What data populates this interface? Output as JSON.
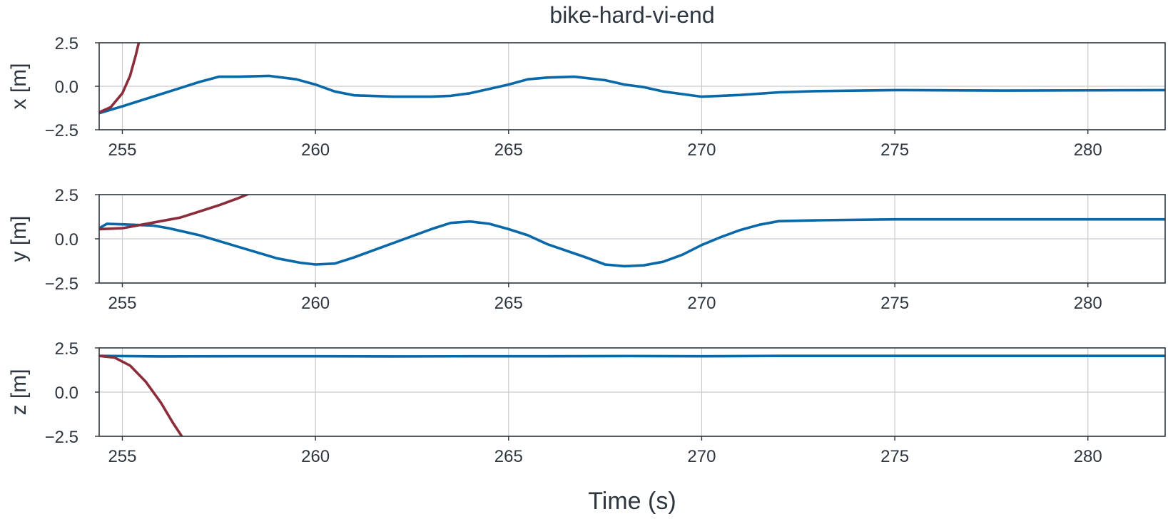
{
  "figure": {
    "title": "bike-hard-vi-end",
    "xlabel": "Time (s)"
  },
  "colors": {
    "blue_series": "#0868a8",
    "red_series": "#8b2d3b",
    "axis": "#2e3640",
    "grid": "#c8cbcf"
  },
  "chart_data": [
    {
      "type": "line",
      "title": "",
      "xlabel": "",
      "ylabel": "x [m]",
      "xlim": [
        254.4,
        282
      ],
      "ylim": [
        -2.5,
        2.5
      ],
      "x_ticks": [
        255,
        260,
        265,
        270,
        275,
        280
      ],
      "x_tick_labels": [
        "255",
        "260",
        "265",
        "270",
        "275",
        "280"
      ],
      "y_ticks": [
        2.5,
        0.0,
        -2.5
      ],
      "y_tick_labels": [
        "2.5",
        "0.0",
        "−2.5"
      ],
      "grid": true,
      "legend": "none",
      "series": [
        {
          "color": "#0868a8",
          "x": [
            254.4,
            255,
            256,
            257,
            257.5,
            258,
            258.8,
            259.5,
            260,
            260.5,
            261,
            262,
            263,
            263.5,
            264,
            264.5,
            265,
            265.5,
            266,
            266.7,
            267.5,
            268,
            268.5,
            269,
            269.5,
            270,
            270.5,
            271,
            272,
            273,
            275,
            278,
            282
          ],
          "y": [
            -1.55,
            -1.15,
            -0.45,
            0.25,
            0.55,
            0.55,
            0.6,
            0.4,
            0.1,
            -0.3,
            -0.52,
            -0.6,
            -0.6,
            -0.55,
            -0.4,
            -0.15,
            0.1,
            0.4,
            0.5,
            0.55,
            0.35,
            0.1,
            -0.05,
            -0.3,
            -0.45,
            -0.6,
            -0.55,
            -0.5,
            -0.35,
            -0.28,
            -0.22,
            -0.25,
            -0.22
          ]
        },
        {
          "color": "#8b2d3b",
          "x": [
            254.4,
            254.7,
            255.0,
            255.2,
            255.35,
            255.5
          ],
          "y": [
            -1.5,
            -1.2,
            -0.4,
            0.6,
            1.8,
            3.2
          ]
        }
      ]
    },
    {
      "type": "line",
      "title": "",
      "xlabel": "",
      "ylabel": "y [m]",
      "xlim": [
        254.4,
        282
      ],
      "ylim": [
        -2.5,
        2.5
      ],
      "x_ticks": [
        255,
        260,
        265,
        270,
        275,
        280
      ],
      "x_tick_labels": [
        "255",
        "260",
        "265",
        "270",
        "275",
        "280"
      ],
      "y_ticks": [
        2.5,
        0.0,
        -2.5
      ],
      "y_tick_labels": [
        "2.5",
        "0.0",
        "−2.5"
      ],
      "grid": true,
      "legend": "none",
      "series": [
        {
          "color": "#0868a8",
          "x": [
            254.4,
            254.6,
            255,
            255.8,
            256.2,
            257,
            258,
            259,
            259.6,
            260,
            260.5,
            261,
            262,
            263,
            263.5,
            264,
            264.5,
            265,
            265.5,
            266,
            267,
            267.5,
            268,
            268.5,
            269,
            269.5,
            270,
            270.5,
            271,
            271.5,
            272,
            273,
            275,
            276,
            278,
            280,
            282
          ],
          "y": [
            0.6,
            0.85,
            0.82,
            0.75,
            0.6,
            0.2,
            -0.45,
            -1.1,
            -1.35,
            -1.45,
            -1.4,
            -1.05,
            -0.25,
            0.55,
            0.9,
            0.98,
            0.85,
            0.55,
            0.2,
            -0.3,
            -1.05,
            -1.45,
            -1.55,
            -1.5,
            -1.3,
            -0.9,
            -0.35,
            0.1,
            0.5,
            0.8,
            1.0,
            1.05,
            1.1,
            1.1,
            1.1,
            1.1,
            1.1
          ]
        },
        {
          "color": "#8b2d3b",
          "x": [
            254.4,
            255,
            255.5,
            256,
            256.5,
            257,
            257.5,
            258,
            258.5,
            259
          ],
          "y": [
            0.55,
            0.6,
            0.8,
            1.0,
            1.2,
            1.55,
            1.9,
            2.3,
            2.75,
            3.2
          ]
        }
      ]
    },
    {
      "type": "line",
      "title": "",
      "xlabel": "",
      "ylabel": "z [m]",
      "xlim": [
        254.4,
        282
      ],
      "ylim": [
        -2.5,
        2.5
      ],
      "x_ticks": [
        255,
        260,
        265,
        270,
        275,
        280
      ],
      "x_tick_labels": [
        "255",
        "260",
        "265",
        "270",
        "275",
        "280"
      ],
      "y_ticks": [
        2.5,
        0.0,
        -2.5
      ],
      "y_tick_labels": [
        "2.5",
        "0.0",
        "−2.5"
      ],
      "grid": true,
      "legend": "none",
      "series": [
        {
          "color": "#0868a8",
          "x": [
            254.4,
            256,
            258,
            260,
            262,
            264,
            266,
            268,
            270,
            272,
            275,
            280,
            282
          ],
          "y": [
            2.05,
            2.02,
            2.03,
            2.03,
            2.02,
            2.03,
            2.03,
            2.04,
            2.03,
            2.05,
            2.05,
            2.05,
            2.05
          ]
        },
        {
          "color": "#8b2d3b",
          "x": [
            254.4,
            254.8,
            255.2,
            255.6,
            256.0,
            256.3,
            256.6
          ],
          "y": [
            2.05,
            1.95,
            1.5,
            0.6,
            -0.6,
            -1.7,
            -2.7
          ]
        }
      ]
    }
  ]
}
